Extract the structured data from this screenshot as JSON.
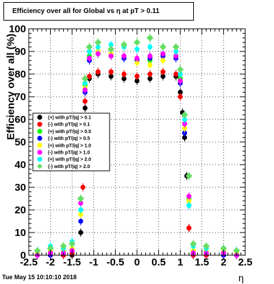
{
  "header": {
    "title": "Efficiency over all for Global vs   η at pT > 0.11"
  },
  "footer": {
    "date": "Tue May 15 10:10:10 2018"
  },
  "chart_data": {
    "type": "scatter",
    "title": "Efficiency over all for Global vs   η at pT > 0.11",
    "xlabel": "η",
    "ylabel": "Efficiency over all (%)",
    "xlim": [
      -2.5,
      2.5
    ],
    "ylim": [
      0,
      100
    ],
    "x_ticks": [
      "-2.5",
      "-2",
      "-1.5",
      "-1",
      "-0.5",
      "0",
      "0.5",
      "1",
      "1.5",
      "2",
      "2.5"
    ],
    "y_ticks": [
      "0",
      "10",
      "20",
      "30",
      "40",
      "50",
      "60",
      "70",
      "80",
      "90",
      "100"
    ],
    "grid": true,
    "legend_position": "left-middle",
    "series": [
      {
        "name": "(+) with pT/|q| > 0.1",
        "color": "#000000",
        "marker": "circle",
        "values": [
          {
            "x": -2.3,
            "y": 0
          },
          {
            "x": -2.0,
            "y": 0
          },
          {
            "x": -1.7,
            "y": 0
          },
          {
            "x": -1.5,
            "y": 0
          },
          {
            "x": -1.3,
            "y": 10
          },
          {
            "x": -1.2,
            "y": 65
          },
          {
            "x": -1.1,
            "y": 78
          },
          {
            "x": -0.9,
            "y": 80
          },
          {
            "x": -0.6,
            "y": 79
          },
          {
            "x": -0.3,
            "y": 78
          },
          {
            "x": 0.0,
            "y": 77
          },
          {
            "x": 0.3,
            "y": 78
          },
          {
            "x": 0.6,
            "y": 79
          },
          {
            "x": 0.9,
            "y": 79
          },
          {
            "x": 1.0,
            "y": 72
          },
          {
            "x": 1.05,
            "y": 63
          },
          {
            "x": 1.1,
            "y": 52
          },
          {
            "x": 1.15,
            "y": 35
          },
          {
            "x": 1.2,
            "y": 12
          },
          {
            "x": 1.3,
            "y": 0
          },
          {
            "x": 1.6,
            "y": 0
          },
          {
            "x": 2.0,
            "y": 0
          },
          {
            "x": 2.3,
            "y": 0
          }
        ]
      },
      {
        "name": "(-) with pT/|q| > 0.1",
        "color": "#ff0000",
        "marker": "circle",
        "values": [
          {
            "x": -2.3,
            "y": 0
          },
          {
            "x": -2.0,
            "y": 0
          },
          {
            "x": -1.7,
            "y": 0
          },
          {
            "x": -1.5,
            "y": 1
          },
          {
            "x": -1.25,
            "y": 30
          },
          {
            "x": -1.2,
            "y": 68
          },
          {
            "x": -1.1,
            "y": 79
          },
          {
            "x": -0.9,
            "y": 81
          },
          {
            "x": -0.6,
            "y": 81
          },
          {
            "x": -0.3,
            "y": 80
          },
          {
            "x": 0.0,
            "y": 79
          },
          {
            "x": 0.3,
            "y": 80
          },
          {
            "x": 0.6,
            "y": 81
          },
          {
            "x": 0.9,
            "y": 80
          },
          {
            "x": 1.0,
            "y": 70
          },
          {
            "x": 1.1,
            "y": 58
          },
          {
            "x": 1.2,
            "y": 12
          },
          {
            "x": 1.3,
            "y": 0
          },
          {
            "x": 1.6,
            "y": 0
          },
          {
            "x": 2.0,
            "y": 0
          },
          {
            "x": 2.3,
            "y": 0
          }
        ]
      },
      {
        "name": "(+) with pT/|q| > 0.5",
        "color": "#00ff00",
        "marker": "circle",
        "values": [
          {
            "x": -2.3,
            "y": 0
          },
          {
            "x": -2.0,
            "y": 1
          },
          {
            "x": -1.7,
            "y": 2
          },
          {
            "x": -1.5,
            "y": 3
          },
          {
            "x": -1.3,
            "y": 20
          },
          {
            "x": -1.2,
            "y": 75
          },
          {
            "x": -1.1,
            "y": 88
          },
          {
            "x": -0.9,
            "y": 89
          },
          {
            "x": -0.6,
            "y": 88
          },
          {
            "x": -0.3,
            "y": 87
          },
          {
            "x": 0.0,
            "y": 86
          },
          {
            "x": 0.3,
            "y": 86
          },
          {
            "x": 0.6,
            "y": 88
          },
          {
            "x": 0.9,
            "y": 88
          },
          {
            "x": 1.0,
            "y": 78
          },
          {
            "x": 1.1,
            "y": 58
          },
          {
            "x": 1.2,
            "y": 25
          },
          {
            "x": 1.3,
            "y": 2
          },
          {
            "x": 1.6,
            "y": 2
          },
          {
            "x": 2.0,
            "y": 1
          },
          {
            "x": 2.3,
            "y": 0
          }
        ]
      },
      {
        "name": "(-) with pT/|q| > 0.5",
        "color": "#0000ff",
        "marker": "circle",
        "values": [
          {
            "x": -2.3,
            "y": 0
          },
          {
            "x": -2.0,
            "y": 0
          },
          {
            "x": -1.7,
            "y": 1
          },
          {
            "x": -1.5,
            "y": 2
          },
          {
            "x": -1.3,
            "y": 15
          },
          {
            "x": -1.2,
            "y": 72
          },
          {
            "x": -1.1,
            "y": 86
          },
          {
            "x": -0.9,
            "y": 89
          },
          {
            "x": -0.6,
            "y": 88
          },
          {
            "x": -0.3,
            "y": 87
          },
          {
            "x": 0.0,
            "y": 86
          },
          {
            "x": 0.3,
            "y": 87
          },
          {
            "x": 0.6,
            "y": 88
          },
          {
            "x": 0.9,
            "y": 87
          },
          {
            "x": 1.0,
            "y": 76
          },
          {
            "x": 1.1,
            "y": 54
          },
          {
            "x": 1.2,
            "y": 22
          },
          {
            "x": 1.3,
            "y": 1
          },
          {
            "x": 1.6,
            "y": 1
          },
          {
            "x": 2.0,
            "y": 0
          },
          {
            "x": 2.3,
            "y": 0
          }
        ]
      },
      {
        "name": "(+) with pT/|q| > 1.0",
        "color": "#ffff00",
        "marker": "circle",
        "values": [
          {
            "x": -2.3,
            "y": 1
          },
          {
            "x": -2.0,
            "y": 2
          },
          {
            "x": -1.7,
            "y": 2
          },
          {
            "x": -1.5,
            "y": 3
          },
          {
            "x": -1.3,
            "y": 18
          },
          {
            "x": -1.2,
            "y": 74
          },
          {
            "x": -1.1,
            "y": 87
          },
          {
            "x": -0.9,
            "y": 90
          },
          {
            "x": -0.6,
            "y": 89
          },
          {
            "x": -0.3,
            "y": 88
          },
          {
            "x": 0.0,
            "y": 85
          },
          {
            "x": 0.3,
            "y": 84
          },
          {
            "x": 0.6,
            "y": 86
          },
          {
            "x": 0.9,
            "y": 88
          },
          {
            "x": 1.0,
            "y": 77
          },
          {
            "x": 1.1,
            "y": 56
          },
          {
            "x": 1.2,
            "y": 24
          },
          {
            "x": 1.3,
            "y": 2
          },
          {
            "x": 1.6,
            "y": 2
          },
          {
            "x": 2.0,
            "y": 2
          },
          {
            "x": 2.3,
            "y": 1
          }
        ]
      },
      {
        "name": "(-) with pT/|q| > 1.0",
        "color": "#ff00ff",
        "marker": "circle",
        "values": [
          {
            "x": -2.3,
            "y": 0
          },
          {
            "x": -2.0,
            "y": 1
          },
          {
            "x": -1.7,
            "y": 1
          },
          {
            "x": -1.5,
            "y": 2
          },
          {
            "x": -1.3,
            "y": 23
          },
          {
            "x": -1.2,
            "y": 73
          },
          {
            "x": -1.1,
            "y": 87
          },
          {
            "x": -0.9,
            "y": 89
          },
          {
            "x": -0.6,
            "y": 88
          },
          {
            "x": -0.3,
            "y": 88
          },
          {
            "x": 0.0,
            "y": 87
          },
          {
            "x": 0.3,
            "y": 88
          },
          {
            "x": 0.6,
            "y": 89
          },
          {
            "x": 0.9,
            "y": 88
          },
          {
            "x": 1.0,
            "y": 77
          },
          {
            "x": 1.1,
            "y": 58
          },
          {
            "x": 1.2,
            "y": 26
          },
          {
            "x": 1.3,
            "y": 1
          },
          {
            "x": 1.6,
            "y": 1
          },
          {
            "x": 2.0,
            "y": 1
          },
          {
            "x": 2.3,
            "y": 0
          }
        ]
      },
      {
        "name": "(+) with pT/|q| > 2.0",
        "color": "#00ffff",
        "marker": "circle",
        "values": [
          {
            "x": -2.3,
            "y": 2
          },
          {
            "x": -2.0,
            "y": 4
          },
          {
            "x": -1.7,
            "y": 3
          },
          {
            "x": -1.5,
            "y": 6
          },
          {
            "x": -1.3,
            "y": 20
          },
          {
            "x": -1.2,
            "y": 76
          },
          {
            "x": -1.1,
            "y": 90
          },
          {
            "x": -0.9,
            "y": 92
          },
          {
            "x": -0.6,
            "y": 93
          },
          {
            "x": -0.3,
            "y": 92
          },
          {
            "x": 0.0,
            "y": 91
          },
          {
            "x": 0.3,
            "y": 92
          },
          {
            "x": 0.6,
            "y": 92
          },
          {
            "x": 0.9,
            "y": 90
          },
          {
            "x": 1.0,
            "y": 80
          },
          {
            "x": 1.1,
            "y": 60
          },
          {
            "x": 1.2,
            "y": 22
          },
          {
            "x": 1.3,
            "y": 4
          },
          {
            "x": 1.6,
            "y": 3
          },
          {
            "x": 2.0,
            "y": 3
          },
          {
            "x": 2.3,
            "y": 2
          }
        ]
      },
      {
        "name": "(-) with pT/|q| > 2.0",
        "color": "#66dd66",
        "marker": "diamond",
        "values": [
          {
            "x": -2.3,
            "y": 2
          },
          {
            "x": -2.0,
            "y": 3
          },
          {
            "x": -1.7,
            "y": 4
          },
          {
            "x": -1.5,
            "y": 5
          },
          {
            "x": -1.3,
            "y": 25
          },
          {
            "x": -1.2,
            "y": 78
          },
          {
            "x": -1.1,
            "y": 92
          },
          {
            "x": -0.9,
            "y": 94
          },
          {
            "x": -0.6,
            "y": 91
          },
          {
            "x": -0.3,
            "y": 93
          },
          {
            "x": 0.0,
            "y": 94
          },
          {
            "x": 0.3,
            "y": 96
          },
          {
            "x": 0.6,
            "y": 92
          },
          {
            "x": 0.9,
            "y": 92
          },
          {
            "x": 1.0,
            "y": 82
          },
          {
            "x": 1.1,
            "y": 62
          },
          {
            "x": 1.2,
            "y": 35
          },
          {
            "x": 1.3,
            "y": 5
          },
          {
            "x": 1.6,
            "y": 4
          },
          {
            "x": 2.0,
            "y": 3
          },
          {
            "x": 2.3,
            "y": 2
          }
        ]
      }
    ]
  }
}
